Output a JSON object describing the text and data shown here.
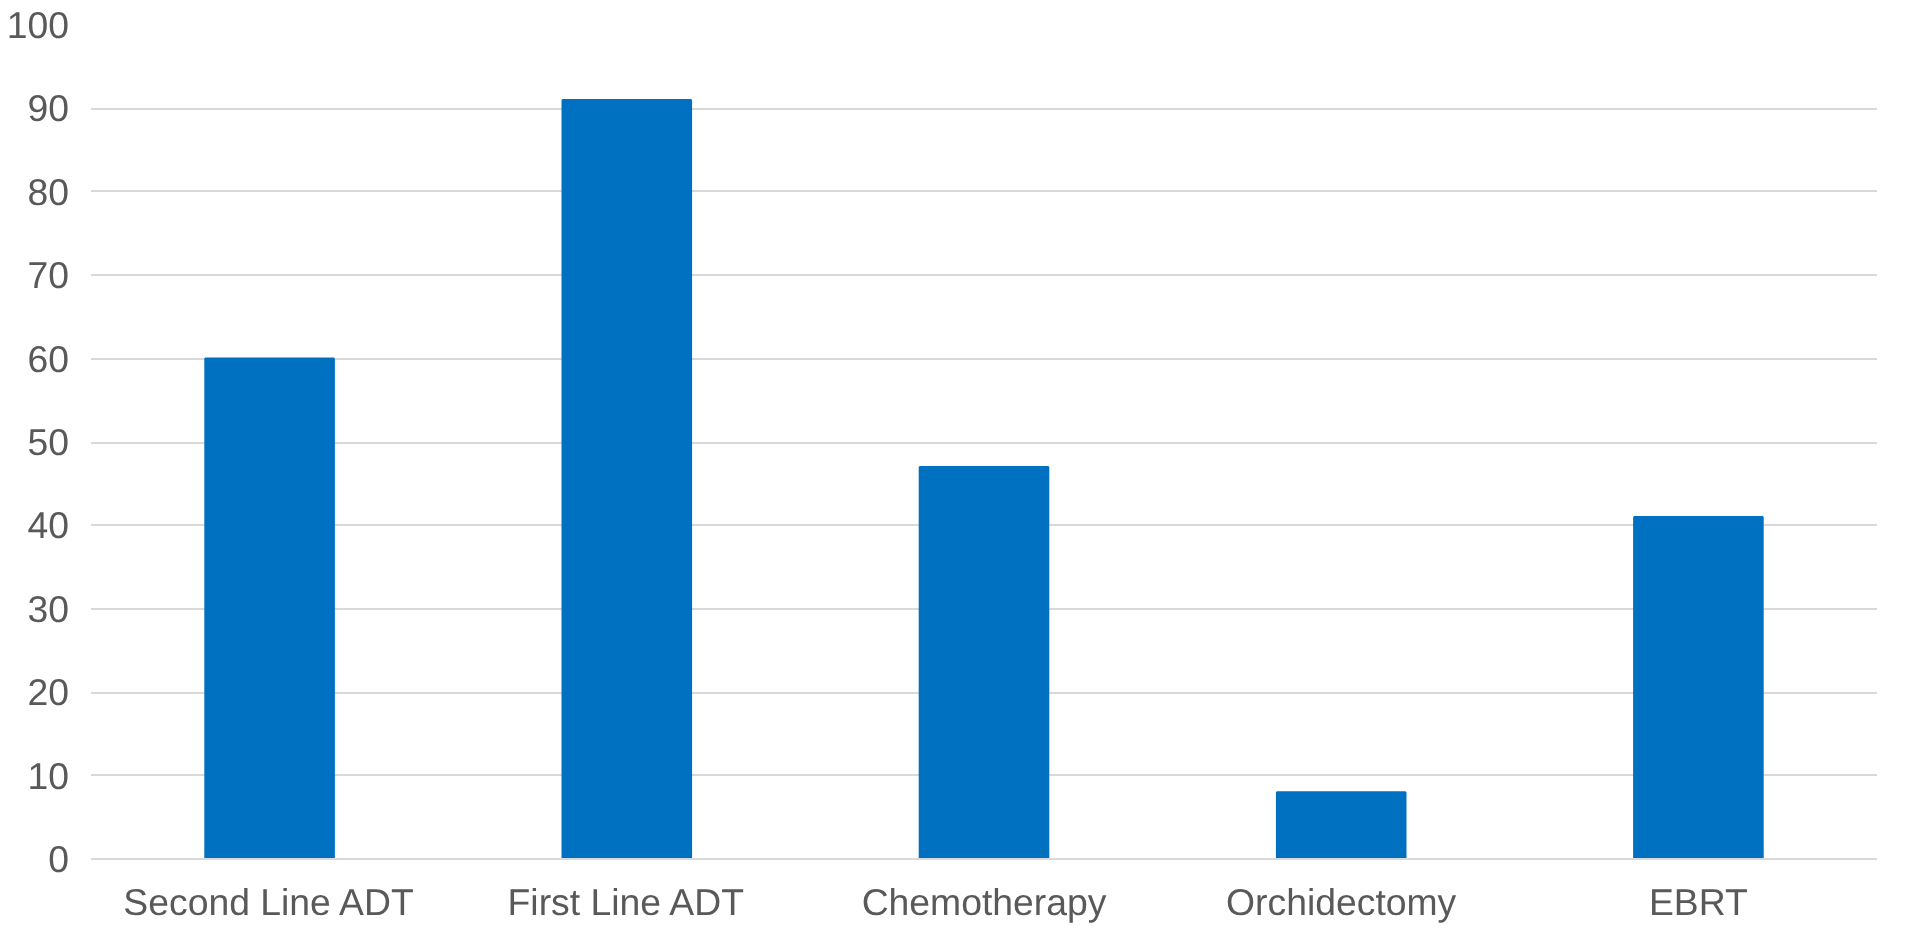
{
  "chart_data": {
    "type": "bar",
    "categories": [
      "Second Line ADT",
      "First Line ADT",
      "Chemotherapy",
      "Orchidectomy",
      "EBRT"
    ],
    "values": [
      60,
      91,
      47,
      8,
      41
    ],
    "color": "#0070c0",
    "ylim": [
      0,
      100
    ],
    "yticks": [
      0,
      10,
      20,
      30,
      40,
      50,
      60,
      70,
      80,
      90,
      100
    ],
    "grid": "y"
  }
}
